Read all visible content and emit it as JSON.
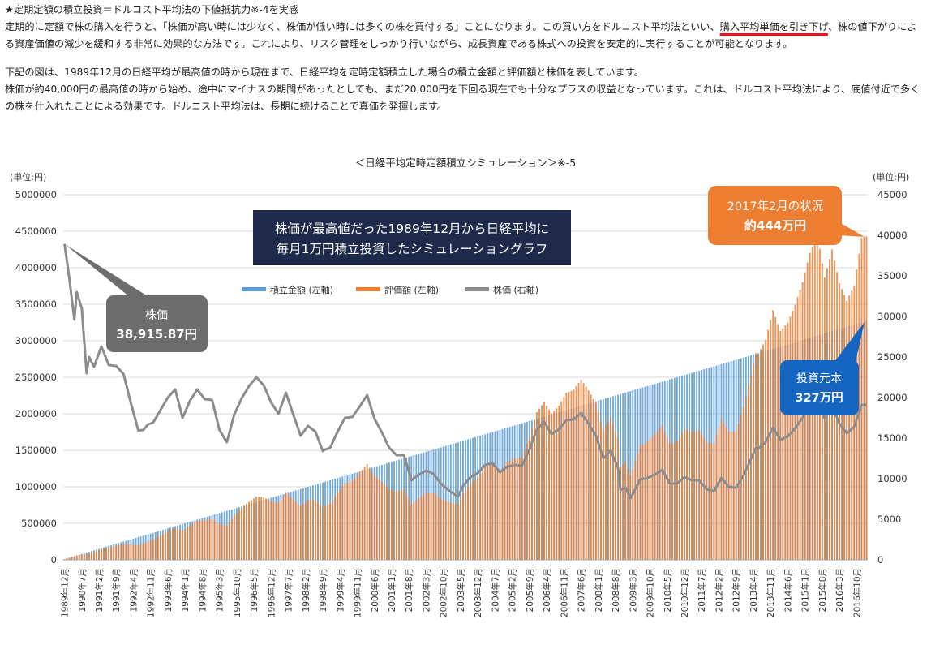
{
  "article": {
    "heading": "★定期定額の積立投資＝ドルコスト平均法の下値抵抗力※-4を実感",
    "para1_a": "定期的に定額で株の購入を行うと、「株価が高い時には少なく、株価が低い時には多くの株を買付する」ことになります。この買い方をドルコスト平均法といい、",
    "para1_hl": "購入平均単価を引き下げ",
    "para1_b": "、株の値下がりによる資産価値の減少を緩和する非常に効果的な方法です。これにより、リスク管理をしっかり行いながら、成長資産である株式への投資を安定的に実行することが可能となります。",
    "para2": "下記の図は、1989年12月の日経平均が最高値の時から現在まで、日経平均を定時定額積立した場合の積立金額と評価額と株価を表しています。",
    "para3": "株価が約40,000円の最高値の時から始め、途中にマイナスの期間があったとしても、まだ20,000円を下回る現在でも十分なプラスの収益となっています。これは、ドルコスト平均法により、底値付近で多くの株を仕入れたことによる効果です。ドルコスト平均法は、長期に続けることで真価を発揮します。"
  },
  "colors": {
    "contribution": "#5b9bd5",
    "valuation": "#ed7d31",
    "stock": "#8c8c8c",
    "navy_box": "#1f2a4a",
    "orange_callout": "#ed7d31",
    "gray_callout": "#6d6d6d",
    "blue_callout": "#1565c0",
    "underline": "#e8131b"
  },
  "chart_data": {
    "type": "bar",
    "title": "＜日経平均定時定額積立シミュレーション＞※-5",
    "left_unit": "(単位:円)",
    "right_unit": "(単位:円)",
    "left_ylim": [
      0,
      5000000
    ],
    "right_ylim": [
      0,
      45000
    ],
    "left_ticks": [
      "0",
      "500000",
      "1000000",
      "1500000",
      "2000000",
      "2500000",
      "3000000",
      "3500000",
      "4000000",
      "4500000",
      "5000000"
    ],
    "right_ticks": [
      "0",
      "5000",
      "10000",
      "15000",
      "20000",
      "25000",
      "30000",
      "35000",
      "40000",
      "45000"
    ],
    "monthly_contribution": 10000,
    "start": "1989-12",
    "end": "2017-02",
    "x_tick_labels": [
      "1989年12月",
      "1990年7月",
      "1991年2月",
      "1991年9月",
      "1992年4月",
      "1992年11月",
      "1993年6月",
      "1994年1月",
      "1994年8月",
      "1995年3月",
      "1995年10月",
      "1996年5月",
      "1996年12月",
      "1997年7月",
      "1998年2月",
      "1998年9月",
      "1999年4月",
      "1999年11月",
      "2000年6月",
      "2001年1月",
      "2001年8月",
      "2002年3月",
      "2002年10月",
      "2003年5月",
      "2003年12月",
      "2004年7月",
      "2005年2月",
      "2005年9月",
      "2006年4月",
      "2006年11月",
      "2007年6月",
      "2008年1月",
      "2008年8月",
      "2009年3月",
      "2009年10月",
      "2010年5月",
      "2010年12月",
      "2011年7月",
      "2012年2月",
      "2012年9月",
      "2013年4月",
      "2013年11月",
      "2014年6月",
      "2015年1月",
      "2015年8月",
      "2016年3月",
      "2016年10月"
    ],
    "stock_price_anchors": [
      [
        "1989-12",
        38916
      ],
      [
        "1990-02",
        34600
      ],
      [
        "1990-04",
        29600
      ],
      [
        "1990-05",
        33000
      ],
      [
        "1990-07",
        31000
      ],
      [
        "1990-09",
        23000
      ],
      [
        "1990-10",
        25000
      ],
      [
        "1990-12",
        23800
      ],
      [
        "1991-03",
        26300
      ],
      [
        "1991-06",
        24000
      ],
      [
        "1991-09",
        23900
      ],
      [
        "1991-12",
        22900
      ],
      [
        "1992-03",
        19300
      ],
      [
        "1992-06",
        15950
      ],
      [
        "1992-08",
        16000
      ],
      [
        "1992-10",
        16700
      ],
      [
        "1992-12",
        16900
      ],
      [
        "1993-06",
        20000
      ],
      [
        "1993-09",
        21000
      ],
      [
        "1993-12",
        17500
      ],
      [
        "1994-03",
        19600
      ],
      [
        "1994-06",
        21000
      ],
      [
        "1994-09",
        19800
      ],
      [
        "1994-12",
        19700
      ],
      [
        "1995-03",
        16000
      ],
      [
        "1995-06",
        14500
      ],
      [
        "1995-09",
        17900
      ],
      [
        "1995-12",
        19900
      ],
      [
        "1996-03",
        21400
      ],
      [
        "1996-06",
        22500
      ],
      [
        "1996-09",
        21500
      ],
      [
        "1996-12",
        19400
      ],
      [
        "1997-03",
        18000
      ],
      [
        "1997-06",
        20600
      ],
      [
        "1997-09",
        17900
      ],
      [
        "1997-12",
        15300
      ],
      [
        "1998-03",
        16500
      ],
      [
        "1998-06",
        15800
      ],
      [
        "1998-09",
        13400
      ],
      [
        "1998-10",
        13600
      ],
      [
        "1998-12",
        13800
      ],
      [
        "1999-03",
        15800
      ],
      [
        "1999-06",
        17500
      ],
      [
        "1999-09",
        17600
      ],
      [
        "1999-12",
        18900
      ],
      [
        "2000-03",
        20300
      ],
      [
        "2000-06",
        17400
      ],
      [
        "2000-09",
        15700
      ],
      [
        "2000-12",
        13800
      ],
      [
        "2001-03",
        12900
      ],
      [
        "2001-06",
        12900
      ],
      [
        "2001-09",
        9800
      ],
      [
        "2001-12",
        10500
      ],
      [
        "2002-03",
        11000
      ],
      [
        "2002-06",
        10600
      ],
      [
        "2002-09",
        9400
      ],
      [
        "2002-12",
        8600
      ],
      [
        "2003-03",
        7970
      ],
      [
        "2003-04",
        7830
      ],
      [
        "2003-06",
        9100
      ],
      [
        "2003-09",
        10200
      ],
      [
        "2003-12",
        10700
      ],
      [
        "2004-03",
        11700
      ],
      [
        "2004-06",
        11900
      ],
      [
        "2004-09",
        10800
      ],
      [
        "2004-12",
        11500
      ],
      [
        "2005-03",
        11700
      ],
      [
        "2005-06",
        11600
      ],
      [
        "2005-09",
        13600
      ],
      [
        "2005-12",
        16100
      ],
      [
        "2006-03",
        17000
      ],
      [
        "2006-06",
        15500
      ],
      [
        "2006-09",
        16100
      ],
      [
        "2006-12",
        17200
      ],
      [
        "2007-03",
        17300
      ],
      [
        "2007-06",
        18100
      ],
      [
        "2007-09",
        16800
      ],
      [
        "2007-12",
        15300
      ],
      [
        "2008-03",
        12500
      ],
      [
        "2008-06",
        13500
      ],
      [
        "2008-09",
        11300
      ],
      [
        "2008-10",
        8600
      ],
      [
        "2008-12",
        8900
      ],
      [
        "2009-02",
        7570
      ],
      [
        "2009-03",
        8100
      ],
      [
        "2009-06",
        9900
      ],
      [
        "2009-09",
        10100
      ],
      [
        "2009-12",
        10500
      ],
      [
        "2010-03",
        11100
      ],
      [
        "2010-06",
        9400
      ],
      [
        "2010-09",
        9400
      ],
      [
        "2010-12",
        10200
      ],
      [
        "2011-03",
        9800
      ],
      [
        "2011-06",
        9800
      ],
      [
        "2011-09",
        8700
      ],
      [
        "2011-12",
        8450
      ],
      [
        "2012-03",
        10100
      ],
      [
        "2012-06",
        9000
      ],
      [
        "2012-09",
        8900
      ],
      [
        "2012-12",
        10400
      ],
      [
        "2013-03",
        12400
      ],
      [
        "2013-05",
        13800
      ],
      [
        "2013-06",
        13700
      ],
      [
        "2013-09",
        14500
      ],
      [
        "2013-12",
        16300
      ],
      [
        "2014-03",
        14800
      ],
      [
        "2014-06",
        15200
      ],
      [
        "2014-09",
        16200
      ],
      [
        "2014-12",
        17500
      ],
      [
        "2015-03",
        19200
      ],
      [
        "2015-06",
        20200
      ],
      [
        "2015-09",
        17400
      ],
      [
        "2015-12",
        19000
      ],
      [
        "2016-03",
        16800
      ],
      [
        "2016-06",
        15600
      ],
      [
        "2016-09",
        16400
      ],
      [
        "2016-12",
        19100
      ],
      [
        "2017-02",
        19100
      ]
    ],
    "series": [
      {
        "name": "積立金額 (左軸)",
        "axis": "left"
      },
      {
        "name": "評価額 (左軸)",
        "axis": "left"
      },
      {
        "name": "株価 (右軸)",
        "axis": "right"
      }
    ]
  },
  "annotations": {
    "navy_box_line1": "株価が最高値だった1989年12月から日経平均に",
    "navy_box_line2": "毎月1万円積立投資したシミュレーショングラフ",
    "stock_callout_line1": "株価",
    "stock_callout_line2": "38,915.87円",
    "status_callout_line1": "2017年2月の状況",
    "status_callout_line2": "約444万円",
    "principal_callout_line1": "投資元本",
    "principal_callout_line2": "327万円"
  }
}
